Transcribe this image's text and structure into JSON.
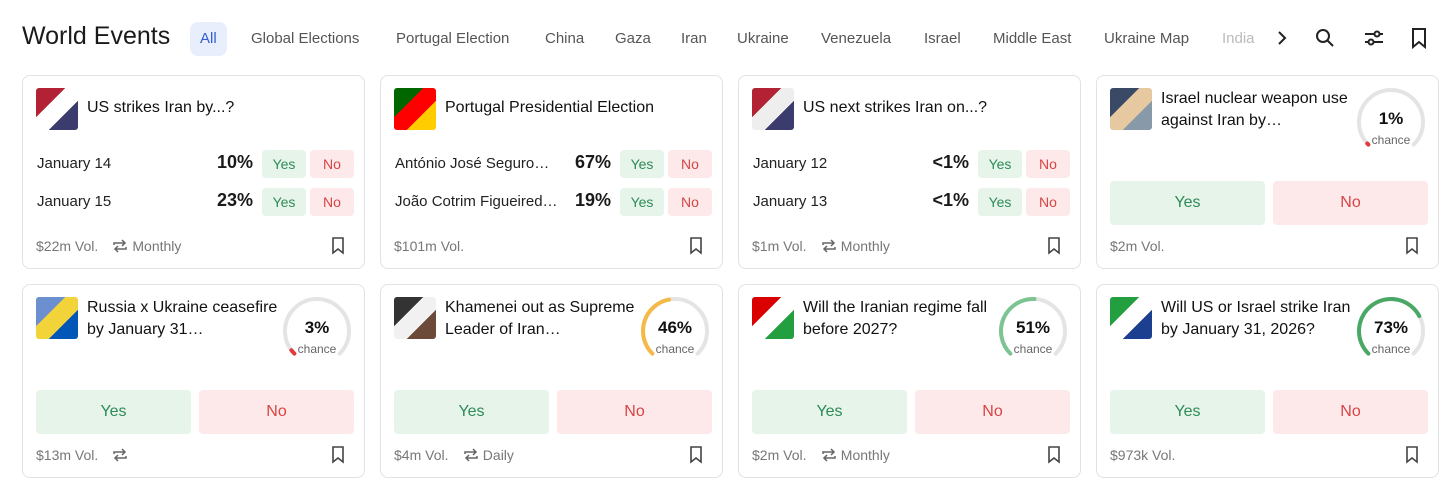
{
  "header": {
    "title": "World Events",
    "tabs": [
      "All",
      "Global Elections",
      "Portugal Election",
      "China",
      "Gaza",
      "Iran",
      "Ukraine",
      "Venezuela",
      "Israel",
      "Middle East",
      "Ukraine Map",
      "India"
    ]
  },
  "cards": [
    {
      "title": "US strikes Iran by...?",
      "outcomes": [
        {
          "label": "January 14",
          "chance": "10%",
          "yes": "Yes",
          "no": "No"
        },
        {
          "label": "January 15",
          "chance": "23%",
          "yes": "Yes",
          "no": "No"
        }
      ],
      "volume": "$22m Vol.",
      "recurrence": "Monthly"
    },
    {
      "title": "Portugal Presidential Election",
      "outcomes": [
        {
          "label": "António José Seguro…",
          "chance": "67%",
          "yes": "Yes",
          "no": "No"
        },
        {
          "label": "João Cotrim Figueired…",
          "chance": "19%",
          "yes": "Yes",
          "no": "No"
        }
      ],
      "volume": "$101m Vol."
    },
    {
      "title": "US next strikes Iran on...?",
      "outcomes": [
        {
          "label": "January 12",
          "chance": "<1%",
          "yes": "Yes",
          "no": "No"
        },
        {
          "label": "January 13",
          "chance": "<1%",
          "yes": "Yes",
          "no": "No"
        }
      ],
      "volume": "$1m Vol.",
      "recurrence": "Monthly"
    },
    {
      "title": "Israel nuclear weapon use against Iran by…",
      "chance": {
        "value": 1,
        "label": "1%"
      },
      "chance_caption": "chance",
      "color": "#e0393e",
      "yes": "Yes",
      "no": "No",
      "volume": "$2m Vol."
    },
    {
      "title": "Russia x Ukraine ceasefire by January 31…",
      "chance": {
        "value": 3,
        "label": "3%"
      },
      "chance_caption": "chance",
      "color": "#e0393e",
      "yes": "Yes",
      "no": "No",
      "volume": "$13m Vol."
    },
    {
      "title": "Khamenei out as Supreme Leader of Iran…",
      "chance": {
        "value": 46,
        "label": "46%"
      },
      "chance_caption": "chance",
      "color": "#f5b947",
      "yes": "Yes",
      "no": "No",
      "volume": "$4m Vol.",
      "recurrence": "Daily"
    },
    {
      "title": "Will the Iranian regime fall before 2027?",
      "chance": {
        "value": 51,
        "label": "51%"
      },
      "chance_caption": "chance",
      "color": "#7cc492",
      "yes": "Yes",
      "no": "No",
      "volume": "$2m Vol.",
      "recurrence": "Monthly"
    },
    {
      "title": "Will US or Israel strike Iran by January 31, 2026?",
      "chance": {
        "value": 73,
        "label": "73%"
      },
      "chance_caption": "chance",
      "color": "#4aa866",
      "yes": "Yes",
      "no": "No",
      "volume": "$973k Vol."
    }
  ]
}
